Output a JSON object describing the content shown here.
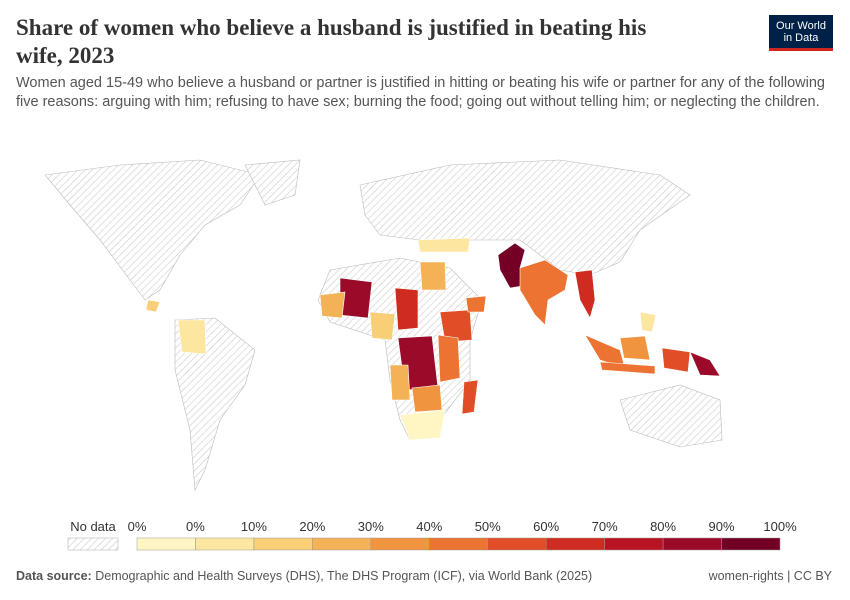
{
  "header": {
    "title": "Share of women who believe a husband is justified in beating his wife, 2023",
    "subtitle": "Women aged 15-49 who believe a husband or partner is justified in hitting or beating his wife or partner for any of the following five reasons: arguing with him; refusing to have sex; burning the food; going out without telling him; or neglecting the children.",
    "logo": [
      "Our World",
      "in Data"
    ]
  },
  "legend": {
    "no_data": "No data",
    "ticks": [
      "0%",
      "0%",
      "10%",
      "20%",
      "30%",
      "40%",
      "50%",
      "60%",
      "70%",
      "80%",
      "90%",
      "100%"
    ],
    "colors": [
      "#fff6c4",
      "#fde6a0",
      "#f8cf76",
      "#f4b257",
      "#f1943f",
      "#ec7331",
      "#e04d26",
      "#cf2b20",
      "#b81423",
      "#9c0a2a",
      "#750026"
    ]
  },
  "footer": {
    "source_label": "Data source:",
    "source": "Demographic and Health Surveys (DHS), The DHS Program (ICF), via World Bank (2025)",
    "license": "women-rights | CC BY"
  }
}
